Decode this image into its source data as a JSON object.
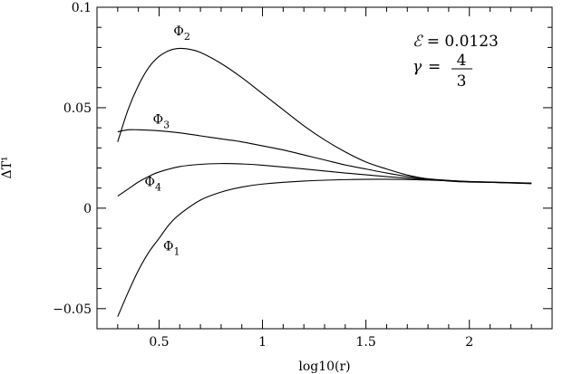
{
  "chart_data": {
    "type": "line",
    "title": "",
    "xlabel": "log10(r)",
    "ylabel": "ΔT¹",
    "xlim": [
      0.2,
      2.4
    ],
    "ylim": [
      -0.06,
      0.1
    ],
    "x_ticks": [
      {
        "value": 0.5,
        "label": "0.5"
      },
      {
        "value": 1.0,
        "label": "1"
      },
      {
        "value": 1.5,
        "label": "1.5"
      },
      {
        "value": 2.0,
        "label": "2"
      }
    ],
    "y_ticks": [
      {
        "value": -0.05,
        "label": "−0.05"
      },
      {
        "value": 0.0,
        "label": "0"
      },
      {
        "value": 0.05,
        "label": "0.05"
      },
      {
        "value": 0.1,
        "label": "0.1"
      }
    ],
    "grid": false,
    "legend": "none",
    "annotations": {
      "epsilon_symbol": "ℰ",
      "epsilon_text": " =  0.0123",
      "gamma_symbol": "γ",
      "gamma_eq": "=",
      "gamma_num": "4",
      "gamma_den": "3"
    },
    "series": [
      {
        "name": "Φ1",
        "label_main": "Φ",
        "label_sub": "1",
        "label_at": {
          "x": 0.52,
          "y": -0.021
        },
        "x": [
          0.3,
          0.35,
          0.4,
          0.45,
          0.5,
          0.55,
          0.6,
          0.7,
          0.8,
          0.9,
          1.0,
          1.2,
          1.4,
          1.6,
          1.8,
          2.0,
          2.3
        ],
        "y": [
          -0.054,
          -0.042,
          -0.031,
          -0.022,
          -0.015,
          -0.008,
          -0.003,
          0.004,
          0.008,
          0.0105,
          0.012,
          0.0135,
          0.0142,
          0.0144,
          0.014,
          0.0132,
          0.0122
        ]
      },
      {
        "name": "Φ2",
        "label_main": "Φ",
        "label_sub": "2",
        "label_at": {
          "x": 0.57,
          "y": 0.086
        },
        "x": [
          0.3,
          0.35,
          0.4,
          0.45,
          0.5,
          0.55,
          0.6,
          0.65,
          0.7,
          0.8,
          0.9,
          1.0,
          1.1,
          1.2,
          1.3,
          1.4,
          1.5,
          1.6,
          1.7,
          1.8,
          1.9,
          2.0,
          2.3
        ],
        "y": [
          0.033,
          0.049,
          0.061,
          0.07,
          0.0755,
          0.0785,
          0.0795,
          0.079,
          0.0775,
          0.072,
          0.065,
          0.057,
          0.049,
          0.041,
          0.034,
          0.028,
          0.023,
          0.0195,
          0.0165,
          0.0145,
          0.0135,
          0.013,
          0.0125
        ]
      },
      {
        "name": "Φ3",
        "label_main": "Φ",
        "label_sub": "3",
        "label_at": {
          "x": 0.47,
          "y": 0.042
        },
        "x": [
          0.3,
          0.35,
          0.4,
          0.5,
          0.6,
          0.7,
          0.8,
          0.9,
          1.0,
          1.1,
          1.2,
          1.3,
          1.4,
          1.5,
          1.6,
          1.7,
          1.8,
          1.9,
          2.0,
          2.3
        ],
        "y": [
          0.038,
          0.039,
          0.039,
          0.0385,
          0.0375,
          0.036,
          0.0345,
          0.033,
          0.031,
          0.029,
          0.0265,
          0.024,
          0.0215,
          0.0195,
          0.0175,
          0.0158,
          0.0146,
          0.0138,
          0.0132,
          0.0123
        ]
      },
      {
        "name": "Φ4",
        "label_main": "Φ",
        "label_sub": "4",
        "label_at": {
          "x": 0.43,
          "y": 0.011
        },
        "x": [
          0.3,
          0.35,
          0.4,
          0.45,
          0.5,
          0.6,
          0.7,
          0.8,
          0.9,
          1.0,
          1.2,
          1.4,
          1.6,
          1.8,
          2.0,
          2.3
        ],
        "y": [
          0.006,
          0.0095,
          0.013,
          0.0158,
          0.018,
          0.0207,
          0.0218,
          0.0222,
          0.022,
          0.0214,
          0.0195,
          0.0175,
          0.0157,
          0.0143,
          0.0133,
          0.0125
        ]
      }
    ]
  }
}
